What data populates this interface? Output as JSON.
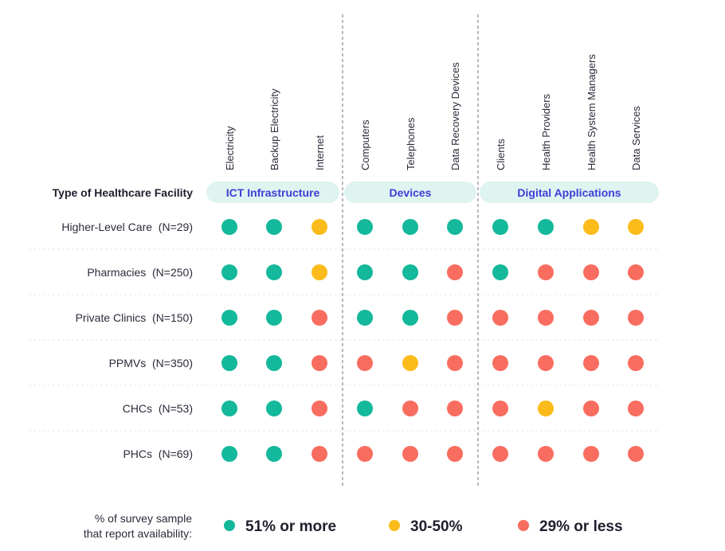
{
  "chart_data": {
    "type": "heatmap",
    "row_header": "Type of Healthcare Facility",
    "groups": [
      {
        "name": "ICT Infrastructure",
        "columns": [
          "Electricity",
          "Backup Electricity",
          "Internet"
        ]
      },
      {
        "name": "Devices",
        "columns": [
          "Computers",
          "Telephones",
          "Data Recovery Devices"
        ]
      },
      {
        "name": "Digital Applications",
        "columns": [
          "Clients",
          "Health Providers",
          "Health System Managers",
          "Data Services"
        ]
      }
    ],
    "columns": [
      "Electricity",
      "Backup Electricity",
      "Internet",
      "Computers",
      "Telephones",
      "Data Recovery Devices",
      "Clients",
      "Health Providers",
      "Health System Managers",
      "Data Services"
    ],
    "rows": [
      {
        "label": "Higher-Level Care  (N=29)",
        "values": [
          "high",
          "high",
          "mid",
          "high",
          "high",
          "high",
          "high",
          "high",
          "mid",
          "mid"
        ]
      },
      {
        "label": "Pharmacies  (N=250)",
        "values": [
          "high",
          "high",
          "mid",
          "high",
          "high",
          "low",
          "high",
          "low",
          "low",
          "low"
        ]
      },
      {
        "label": "Private Clinics  (N=150)",
        "values": [
          "high",
          "high",
          "low",
          "high",
          "high",
          "low",
          "low",
          "low",
          "low",
          "low"
        ]
      },
      {
        "label": "PPMVs  (N=350)",
        "values": [
          "high",
          "high",
          "low",
          "low",
          "mid",
          "low",
          "low",
          "low",
          "low",
          "low"
        ]
      },
      {
        "label": "CHCs  (N=53)",
        "values": [
          "high",
          "high",
          "low",
          "high",
          "low",
          "low",
          "low",
          "mid",
          "low",
          "low"
        ]
      },
      {
        "label": "PHCs  (N=69)",
        "values": [
          "high",
          "high",
          "low",
          "low",
          "low",
          "low",
          "low",
          "low",
          "low",
          "low"
        ]
      }
    ],
    "legend": {
      "title_line1": "% of survey sample",
      "title_line2": "that report availability:",
      "items": [
        {
          "key": "high",
          "label": "51% or more",
          "color": "#14b89a"
        },
        {
          "key": "mid",
          "label": "30-50%",
          "color": "#fbbb1a"
        },
        {
          "key": "low",
          "label": "29% or less",
          "color": "#f86d5f"
        }
      ]
    },
    "group_band_color": "#dff3f1",
    "group_text_color": "#3b3fd6"
  }
}
